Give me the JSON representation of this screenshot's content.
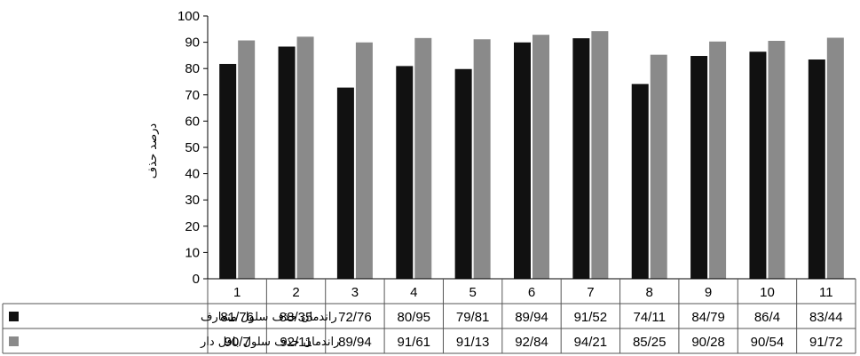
{
  "chart_data": {
    "type": "bar",
    "title": "",
    "xlabel": "",
    "ylabel": "درصد حذف",
    "ylim": [
      0,
      100
    ],
    "ytick_step": 10,
    "yticks": [
      "0",
      "10",
      "20",
      "30",
      "40",
      "50",
      "60",
      "70",
      "80",
      "90",
      "100"
    ],
    "grid": false,
    "legend_position": "data-table-left",
    "categories": [
      "1",
      "2",
      "3",
      "4",
      "5",
      "6",
      "7",
      "8",
      "9",
      "10",
      "11"
    ],
    "series": [
      {
        "name": "راندمان حذف سلول متعارف",
        "color": "#111111",
        "values": [
          81.76,
          88.35,
          72.76,
          80.95,
          79.81,
          89.94,
          91.52,
          74.11,
          84.79,
          86.4,
          83.44
        ],
        "labels": [
          "81/76",
          "88/35",
          "72/76",
          "80/95",
          "79/81",
          "89/94",
          "91/52",
          "74/11",
          "84/79",
          "86/4",
          "83/44"
        ]
      },
      {
        "name": "راندمان حذف سلول بافل دار",
        "color": "#8a8a8a",
        "values": [
          90.7,
          92.11,
          89.94,
          91.61,
          91.13,
          92.84,
          94.21,
          85.25,
          90.28,
          90.54,
          91.72
        ],
        "labels": [
          "90/7",
          "92/11",
          "89/94",
          "91/61",
          "91/13",
          "92/84",
          "94/21",
          "85/25",
          "90/28",
          "90/54",
          "91/72"
        ]
      }
    ]
  }
}
